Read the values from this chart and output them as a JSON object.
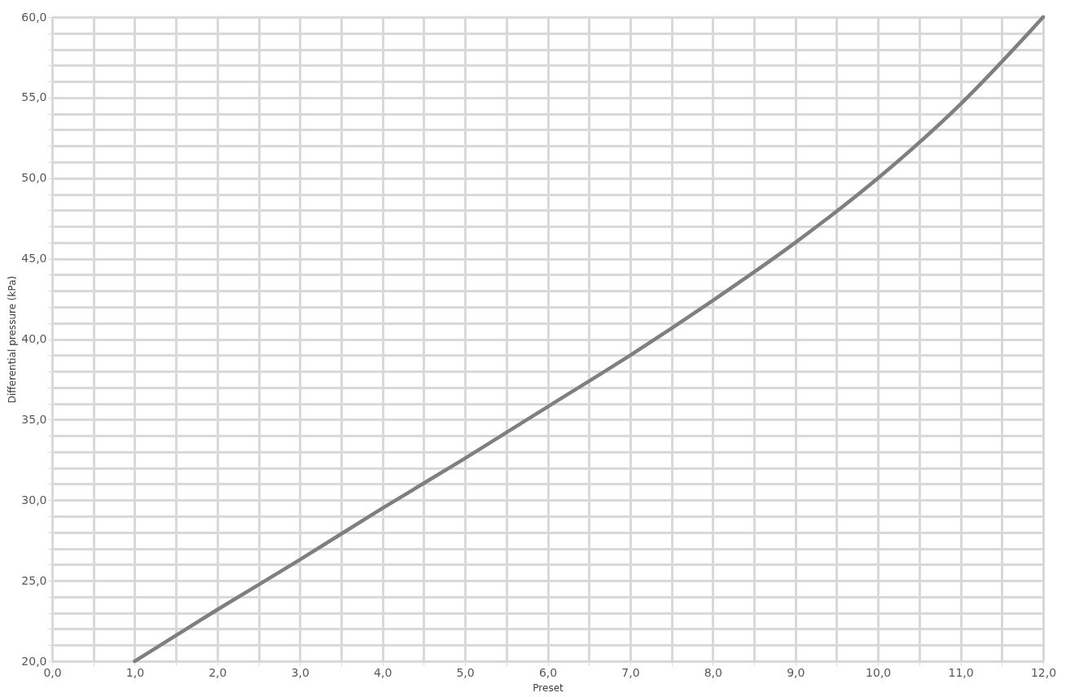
{
  "chart_data": {
    "type": "line",
    "xlabel": "Preset",
    "ylabel": "Differential pressure (kPa)",
    "x": [
      1,
      2,
      3,
      4,
      5,
      6,
      7,
      8,
      9,
      10,
      11,
      12
    ],
    "series": [
      {
        "color": "#7f7f7f",
        "values": [
          20.0,
          23.2,
          26.3,
          29.5,
          32.6,
          35.8,
          39.0,
          42.4,
          46.0,
          50.0,
          54.6,
          60.0
        ]
      }
    ],
    "xlim": [
      0,
      12
    ],
    "ylim": [
      20,
      60
    ],
    "xticks": [
      {
        "value": 0,
        "label": "0,0"
      },
      {
        "value": 0.5,
        "label": null
      },
      {
        "value": 1,
        "label": "1,0"
      },
      {
        "value": 1.5,
        "label": null
      },
      {
        "value": 2,
        "label": "2,0"
      },
      {
        "value": 2.5,
        "label": null
      },
      {
        "value": 3,
        "label": "3,0"
      },
      {
        "value": 3.5,
        "label": null
      },
      {
        "value": 4,
        "label": "4,0"
      },
      {
        "value": 4.5,
        "label": null
      },
      {
        "value": 5,
        "label": "5,0"
      },
      {
        "value": 5.5,
        "label": null
      },
      {
        "value": 6,
        "label": "6,0"
      },
      {
        "value": 6.5,
        "label": null
      },
      {
        "value": 7,
        "label": "7,0"
      },
      {
        "value": 7.5,
        "label": null
      },
      {
        "value": 8,
        "label": "8,0"
      },
      {
        "value": 8.5,
        "label": null
      },
      {
        "value": 9,
        "label": "9,0"
      },
      {
        "value": 9.5,
        "label": null
      },
      {
        "value": 10,
        "label": "10,0"
      },
      {
        "value": 10.5,
        "label": null
      },
      {
        "value": 11,
        "label": "11,0"
      },
      {
        "value": 11.5,
        "label": null
      },
      {
        "value": 12,
        "label": "12,0"
      }
    ],
    "yticks": [
      {
        "value": 20,
        "label": "20,0"
      },
      {
        "value": 21,
        "label": null
      },
      {
        "value": 22,
        "label": null
      },
      {
        "value": 23,
        "label": null
      },
      {
        "value": 24,
        "label": null
      },
      {
        "value": 25,
        "label": "25,0"
      },
      {
        "value": 26,
        "label": null
      },
      {
        "value": 27,
        "label": null
      },
      {
        "value": 28,
        "label": null
      },
      {
        "value": 29,
        "label": null
      },
      {
        "value": 30,
        "label": "30,0"
      },
      {
        "value": 31,
        "label": null
      },
      {
        "value": 32,
        "label": null
      },
      {
        "value": 33,
        "label": null
      },
      {
        "value": 34,
        "label": null
      },
      {
        "value": 35,
        "label": "35,0"
      },
      {
        "value": 36,
        "label": null
      },
      {
        "value": 37,
        "label": null
      },
      {
        "value": 38,
        "label": null
      },
      {
        "value": 39,
        "label": null
      },
      {
        "value": 40,
        "label": "40,0"
      },
      {
        "value": 41,
        "label": null
      },
      {
        "value": 42,
        "label": null
      },
      {
        "value": 43,
        "label": null
      },
      {
        "value": 44,
        "label": null
      },
      {
        "value": 45,
        "label": "45,0"
      },
      {
        "value": 46,
        "label": null
      },
      {
        "value": 47,
        "label": null
      },
      {
        "value": 48,
        "label": null
      },
      {
        "value": 49,
        "label": null
      },
      {
        "value": 50,
        "label": "50,0"
      },
      {
        "value": 51,
        "label": null
      },
      {
        "value": 52,
        "label": null
      },
      {
        "value": 53,
        "label": null
      },
      {
        "value": 54,
        "label": null
      },
      {
        "value": 55,
        "label": "55,0"
      },
      {
        "value": 56,
        "label": null
      },
      {
        "value": 57,
        "label": null
      },
      {
        "value": 58,
        "label": null
      },
      {
        "value": 59,
        "label": null
      },
      {
        "value": 60,
        "label": "60,0"
      }
    ],
    "grid": true,
    "marker": "none",
    "line_style": "solid"
  }
}
